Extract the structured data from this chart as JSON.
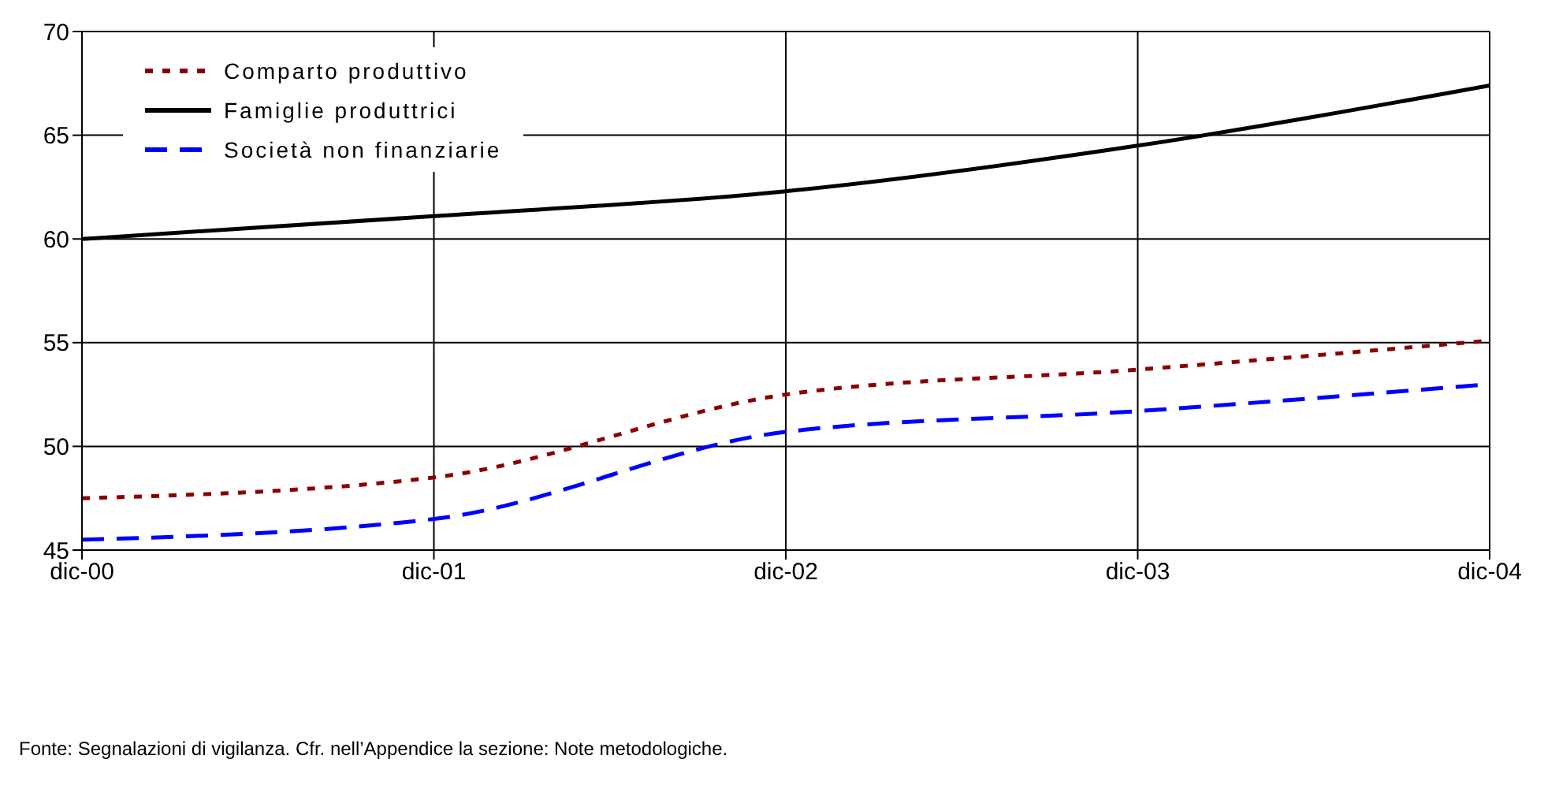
{
  "chart_data": {
    "type": "line",
    "categories": [
      "dic-00",
      "dic-01",
      "dic-02",
      "dic-03",
      "dic-04"
    ],
    "series": [
      {
        "name": "Comparto produttivo",
        "color": "#8b0000",
        "line_style": "dotted",
        "values": [
          47.5,
          48.5,
          52.5,
          53.7,
          55.1
        ]
      },
      {
        "name": "Famiglie produttrici",
        "color": "#000000",
        "line_style": "solid",
        "values": [
          60,
          61.1,
          62.3,
          64.5,
          67.4
        ]
      },
      {
        "name": "Società non finanziarie",
        "color": "#0000ff",
        "line_style": "dashed",
        "values": [
          45.5,
          46.5,
          50.7,
          51.7,
          53.0
        ]
      }
    ],
    "ylim": [
      45,
      70
    ],
    "yticks": [
      45,
      50,
      55,
      60,
      65,
      70
    ],
    "grid": true,
    "legend": "top left",
    "marker": "none",
    "annotations": [
      "Fonte: Segnalazioni di vigilanza. Cfr. nell’Appendice la sezione: Note metodologiche."
    ]
  }
}
